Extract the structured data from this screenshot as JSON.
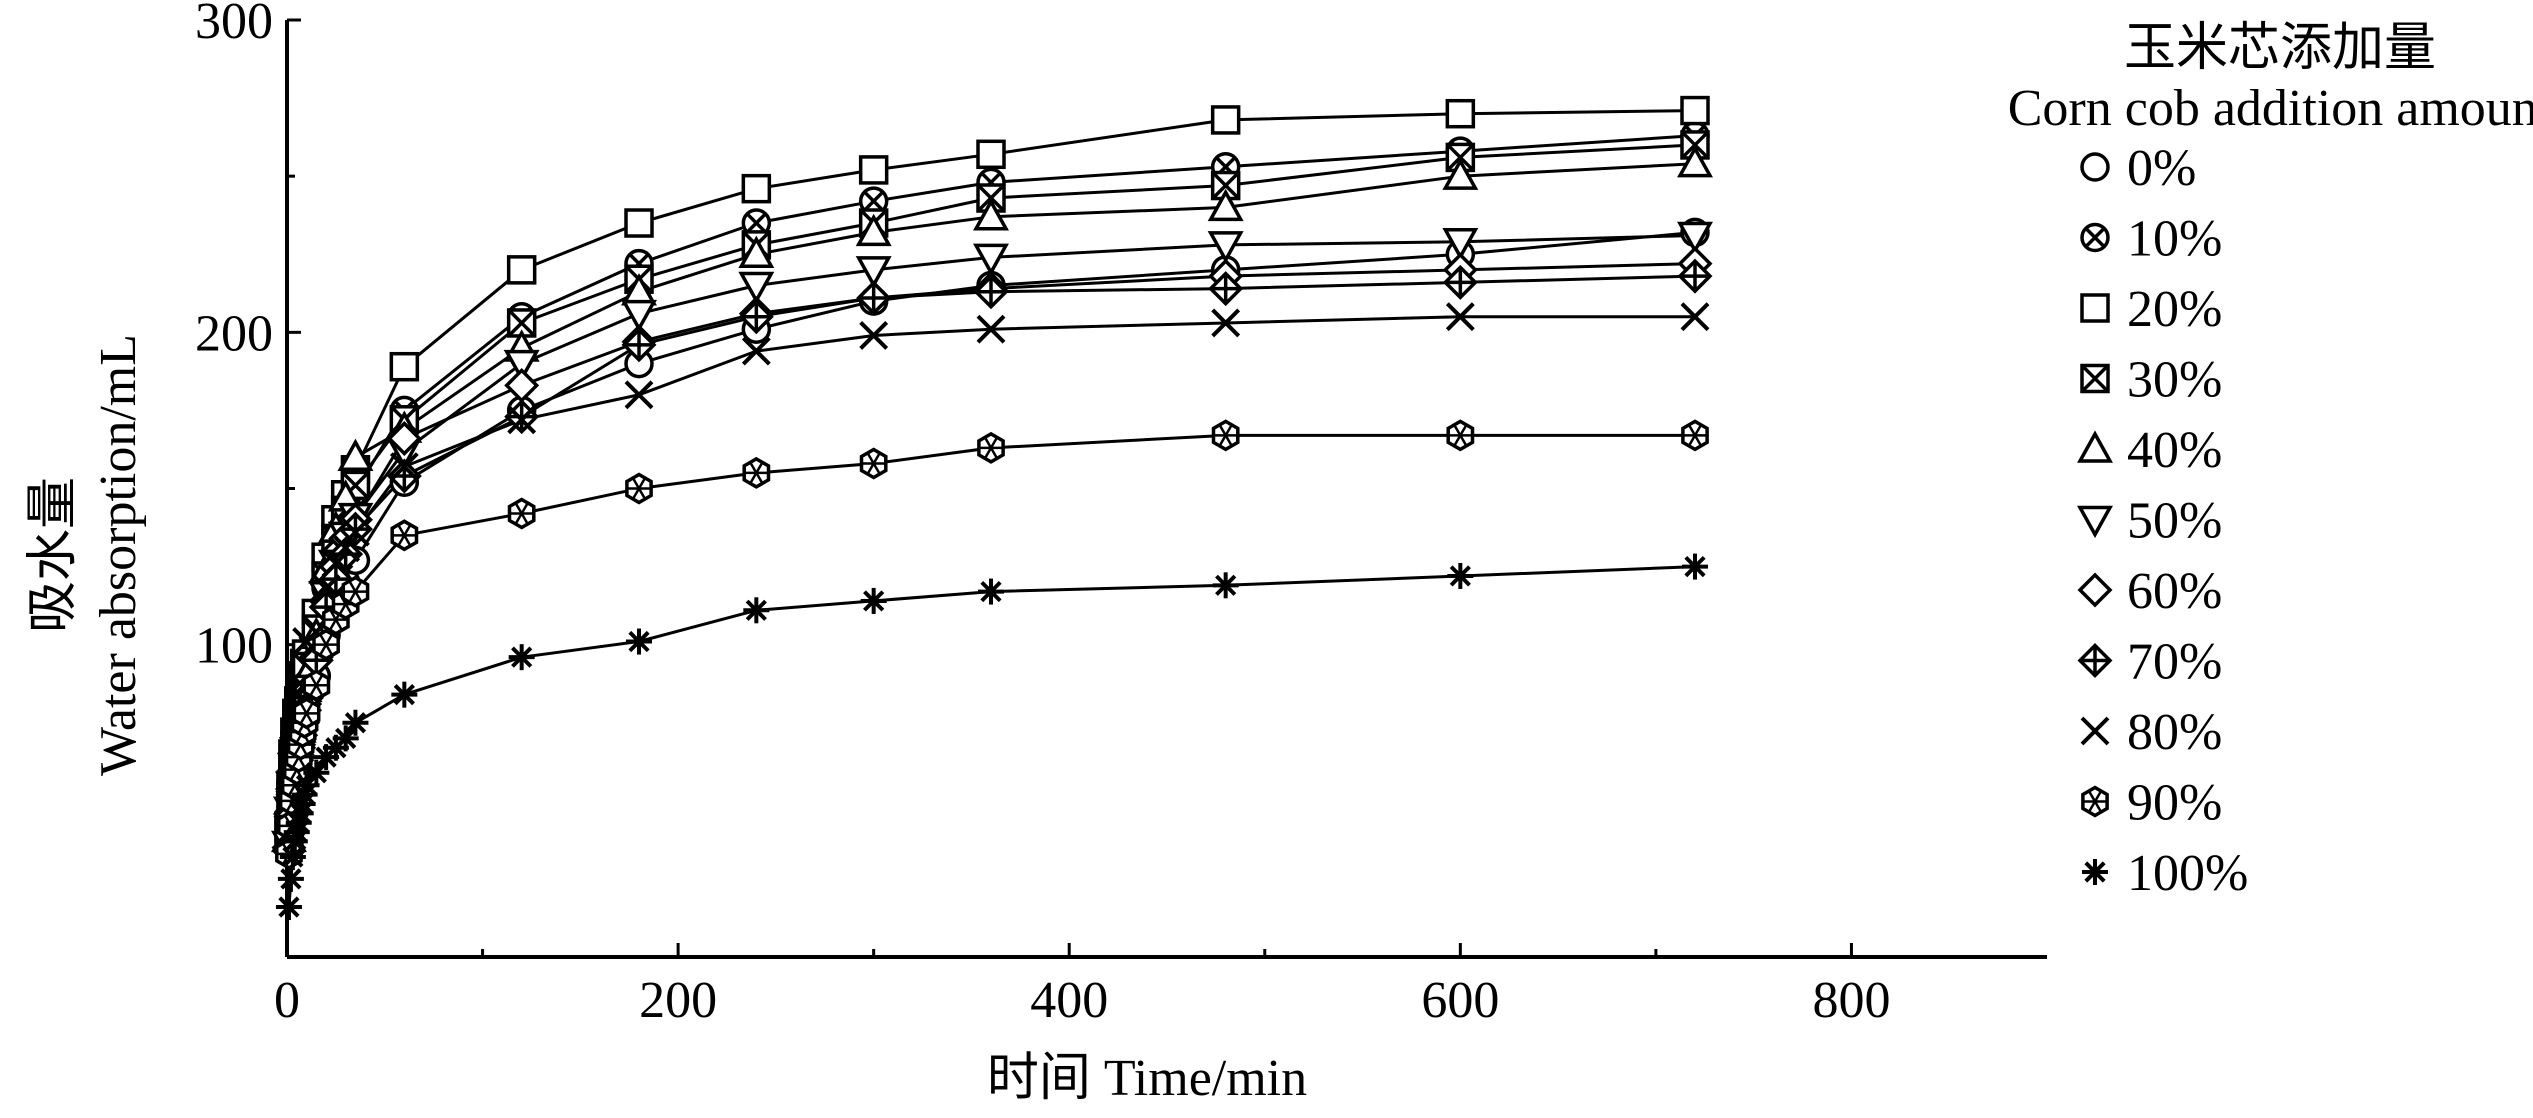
{
  "chart_data": {
    "type": "line",
    "xlabel": "时间 Time/min",
    "ylabel_cn": "吸水量",
    "ylabel_en": "Water absorption/mL",
    "xlim": [
      0,
      900
    ],
    "ylim": [
      0,
      300
    ],
    "y_axis_min_visible": 5,
    "xticks": [
      0,
      200,
      400,
      600,
      800
    ],
    "yticks": [
      100,
      200,
      300
    ],
    "grid": false,
    "legend_position": "right",
    "legend_title_cn": "玉米芯添加量",
    "legend_title_en": "Corn cob addition amount",
    "x": [
      1,
      2,
      3,
      4,
      5,
      6,
      7,
      8,
      9,
      10,
      15,
      20,
      25,
      30,
      35,
      60,
      120,
      180,
      240,
      300,
      360,
      480,
      600,
      720
    ],
    "series": [
      {
        "name": "0%",
        "marker": "circle",
        "values": [
          35,
          45,
          52,
          58,
          63,
          67,
          72,
          76,
          79,
          83,
          90,
          103,
          112,
          120,
          127,
          152,
          175,
          190,
          201,
          210,
          215,
          220,
          225,
          232
        ]
      },
      {
        "name": "10%",
        "marker": "circle-x",
        "values": [
          37,
          48,
          56,
          63,
          68,
          72,
          77,
          81,
          85,
          89,
          100,
          118,
          130,
          140,
          149,
          175,
          205,
          222,
          235,
          242,
          248,
          253,
          258,
          263
        ]
      },
      {
        "name": "20%",
        "marker": "square",
        "values": [
          42,
          55,
          65,
          72,
          78,
          82,
          86,
          90,
          94,
          97,
          110,
          128,
          140,
          148,
          156,
          189,
          220,
          235,
          246,
          252,
          257,
          268,
          270,
          271
        ]
      },
      {
        "name": "30%",
        "marker": "square-x",
        "values": [
          40,
          52,
          61,
          68,
          73,
          78,
          82,
          86,
          90,
          93,
          105,
          122,
          134,
          143,
          151,
          172,
          203,
          217,
          228,
          235,
          243,
          247,
          256,
          260
        ]
      },
      {
        "name": "40%",
        "marker": "triangle-up",
        "values": [
          38,
          50,
          58,
          64,
          69,
          73,
          78,
          82,
          86,
          90,
          103,
          124,
          137,
          147,
          160,
          169,
          195,
          213,
          225,
          232,
          237,
          240,
          250,
          254
        ]
      },
      {
        "name": "50%",
        "marker": "triangle-down",
        "values": [
          36,
          47,
          55,
          61,
          66,
          70,
          75,
          79,
          83,
          86,
          98,
          116,
          126,
          135,
          141,
          162,
          190,
          206,
          215,
          220,
          224,
          228,
          229,
          231
        ]
      },
      {
        "name": "60%",
        "marker": "diamond",
        "values": [
          35,
          46,
          53,
          59,
          64,
          68,
          73,
          77,
          81,
          85,
          96,
          114,
          125,
          134,
          140,
          166,
          183,
          197,
          206,
          211,
          214,
          218,
          220,
          222
        ]
      },
      {
        "name": "70%",
        "marker": "diamond-plus",
        "values": [
          34,
          45,
          52,
          58,
          63,
          67,
          71,
          75,
          79,
          83,
          95,
          112,
          121,
          129,
          137,
          154,
          173,
          196,
          205,
          211,
          213,
          214,
          216,
          218
        ]
      },
      {
        "name": "80%",
        "marker": "x",
        "values": [
          40,
          52,
          60,
          66,
          71,
          75,
          79,
          83,
          86,
          101,
          104,
          118,
          126,
          131,
          136,
          157,
          172,
          180,
          194,
          199,
          201,
          203,
          205,
          205
        ]
      },
      {
        "name": "90%",
        "marker": "hexagon-star",
        "values": [
          33,
          42,
          50,
          55,
          60,
          64,
          68,
          72,
          75,
          78,
          87,
          100,
          108,
          113,
          117,
          135,
          142,
          150,
          155,
          158,
          163,
          167,
          167,
          167
        ]
      },
      {
        "name": "100%",
        "marker": "asterisk",
        "values": [
          16,
          25,
          32,
          37,
          40,
          43,
          46,
          49,
          52,
          55,
          59,
          64,
          67,
          70,
          75,
          84,
          96,
          101,
          111,
          114,
          117,
          119,
          122,
          125
        ]
      }
    ]
  }
}
